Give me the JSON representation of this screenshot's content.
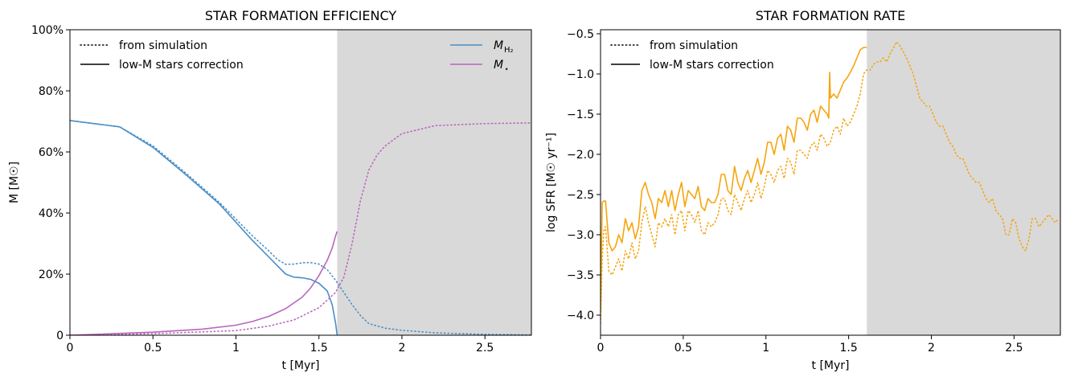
{
  "chart_data": [
    {
      "type": "line",
      "title": "STAR FORMATION EFFICIENCY",
      "xlabel": "t  [Myr]",
      "ylabel": "M  [M☉]",
      "xlim": [
        0,
        2.78
      ],
      "ylim": [
        0,
        100
      ],
      "xticks": [
        "0",
        "0.5",
        "1",
        "1.5",
        "2",
        "2.5"
      ],
      "yticks": [
        "0",
        "20%",
        "40%",
        "60%",
        "80%",
        "100%"
      ],
      "shaded_from_x": 1.61,
      "legend_style": [
        {
          "label": "from simulation",
          "style": "dotted"
        },
        {
          "label": "low-M stars correction",
          "style": "solid"
        }
      ],
      "legend_species": [
        {
          "label": "M",
          "sub": "H₂",
          "color": "#4a8fc6"
        },
        {
          "label": "M",
          "sub": "⋆",
          "color": "#b966bd"
        }
      ],
      "series": [
        {
          "name": "M H2",
          "style": "dotted",
          "color": "#4a8fc6",
          "x": [
            0,
            0.3,
            0.5,
            0.7,
            0.9,
            1.0,
            1.1,
            1.2,
            1.25,
            1.3,
            1.35,
            1.4,
            1.45,
            1.5,
            1.55,
            1.6,
            1.65,
            1.7,
            1.75,
            1.8,
            1.9,
            2.0,
            2.2,
            2.5,
            2.78
          ],
          "y": [
            70.3,
            68.2,
            62,
            53,
            43.5,
            38,
            32.5,
            27.5,
            24.8,
            23.2,
            23.3,
            23.7,
            23.8,
            23.3,
            21.5,
            18,
            14,
            10,
            6.5,
            3.8,
            2.3,
            1.6,
            0.8,
            0.3,
            0.1
          ]
        },
        {
          "name": "M H2 corrected",
          "style": "solid",
          "color": "#4a8fc6",
          "x": [
            0,
            0.3,
            0.5,
            0.7,
            0.9,
            1.0,
            1.1,
            1.2,
            1.25,
            1.3,
            1.35,
            1.4,
            1.45,
            1.5,
            1.55,
            1.58,
            1.6,
            1.61
          ],
          "y": [
            70.3,
            68.2,
            61.5,
            52.5,
            43,
            37,
            31,
            25.5,
            22.7,
            20,
            19,
            18.8,
            18.3,
            17,
            14.5,
            10,
            4,
            0
          ]
        },
        {
          "name": "M star",
          "style": "dotted",
          "color": "#b966bd",
          "x": [
            0,
            0.5,
            1.0,
            1.2,
            1.35,
            1.5,
            1.6,
            1.65,
            1.7,
            1.75,
            1.8,
            1.85,
            1.9,
            2.0,
            2.2,
            2.5,
            2.78
          ],
          "y": [
            0,
            0.5,
            1.5,
            3.0,
            5.0,
            9.0,
            14,
            19,
            30,
            44,
            54,
            59,
            62,
            66,
            68.6,
            69.3,
            69.5
          ]
        },
        {
          "name": "M star corrected",
          "style": "solid",
          "color": "#b966bd",
          "x": [
            0,
            0.5,
            0.8,
            1.0,
            1.1,
            1.2,
            1.3,
            1.4,
            1.45,
            1.5,
            1.55,
            1.58,
            1.6,
            1.61
          ],
          "y": [
            0,
            1.0,
            2.0,
            3.3,
            4.5,
            6.2,
            8.7,
            12.5,
            15.5,
            19.5,
            24.5,
            28.5,
            32.5,
            34
          ]
        }
      ]
    },
    {
      "type": "line",
      "title": "STAR FORMATION RATE",
      "xlabel": "t  [Myr]",
      "ylabel": "log SFR  [M☉ yr⁻¹]",
      "xlim": [
        0,
        2.78
      ],
      "ylim": [
        -4.25,
        -0.45
      ],
      "xticks": [
        "0",
        "0.5",
        "1",
        "1.5",
        "2",
        "2.5"
      ],
      "yticks": [
        "−4.0",
        "−3.5",
        "−3.0",
        "−2.5",
        "−2.0",
        "−1.5",
        "−1.0",
        "−0.5"
      ],
      "shaded_from_x": 1.61,
      "legend_style": [
        {
          "label": "from simulation",
          "style": "dotted"
        },
        {
          "label": "low-M stars correction",
          "style": "solid"
        }
      ],
      "series": [
        {
          "name": "SFR",
          "style": "dotted",
          "color": "#f5a50e",
          "x": [
            0,
            0.01,
            0.02,
            0.03,
            0.05,
            0.07,
            0.09,
            0.11,
            0.13,
            0.15,
            0.17,
            0.19,
            0.21,
            0.23,
            0.25,
            0.27,
            0.29,
            0.31,
            0.33,
            0.35,
            0.37,
            0.39,
            0.41,
            0.43,
            0.45,
            0.47,
            0.49,
            0.51,
            0.53,
            0.55,
            0.57,
            0.59,
            0.61,
            0.63,
            0.65,
            0.67,
            0.69,
            0.71,
            0.73,
            0.75,
            0.77,
            0.79,
            0.81,
            0.83,
            0.85,
            0.87,
            0.89,
            0.91,
            0.93,
            0.95,
            0.97,
            0.99,
            1.01,
            1.03,
            1.05,
            1.07,
            1.09,
            1.11,
            1.13,
            1.15,
            1.17,
            1.19,
            1.21,
            1.23,
            1.25,
            1.27,
            1.29,
            1.31,
            1.33,
            1.35,
            1.37,
            1.39,
            1.41,
            1.43,
            1.45,
            1.47,
            1.49,
            1.51,
            1.53,
            1.55,
            1.57,
            1.59,
            1.61,
            1.63,
            1.65,
            1.67,
            1.69,
            1.71,
            1.73,
            1.75,
            1.77,
            1.79,
            1.81,
            1.83,
            1.85,
            1.87,
            1.89,
            1.91,
            1.93,
            1.95,
            1.97,
            1.99,
            2.01,
            2.03,
            2.05,
            2.07,
            2.09,
            2.11,
            2.13,
            2.15,
            2.17,
            2.19,
            2.21,
            2.23,
            2.25,
            2.27,
            2.29,
            2.31,
            2.33,
            2.35,
            2.37,
            2.39,
            2.41,
            2.43,
            2.45,
            2.47,
            2.49,
            2.51,
            2.53,
            2.55,
            2.57,
            2.59,
            2.61,
            2.63,
            2.65,
            2.67,
            2.69,
            2.71,
            2.73,
            2.75,
            2.77
          ],
          "y": [
            -4.1,
            -3.3,
            -2.95,
            -2.9,
            -3.45,
            -3.5,
            -3.4,
            -3.3,
            -3.45,
            -3.2,
            -3.3,
            -3.1,
            -3.3,
            -3.2,
            -2.85,
            -2.65,
            -2.85,
            -3.0,
            -3.15,
            -2.85,
            -2.9,
            -2.8,
            -2.9,
            -2.75,
            -3.0,
            -2.75,
            -2.7,
            -2.95,
            -2.7,
            -2.75,
            -2.85,
            -2.7,
            -2.95,
            -3.0,
            -2.85,
            -2.9,
            -2.85,
            -2.75,
            -2.55,
            -2.55,
            -2.7,
            -2.75,
            -2.5,
            -2.6,
            -2.7,
            -2.55,
            -2.45,
            -2.6,
            -2.5,
            -2.35,
            -2.55,
            -2.4,
            -2.2,
            -2.25,
            -2.35,
            -2.2,
            -2.15,
            -2.3,
            -2.05,
            -2.1,
            -2.25,
            -1.95,
            -1.95,
            -2.0,
            -2.05,
            -1.9,
            -1.85,
            -1.95,
            -1.75,
            -1.8,
            -1.9,
            -1.85,
            -1.7,
            -1.65,
            -1.75,
            -1.55,
            -1.65,
            -1.6,
            -1.5,
            -1.4,
            -1.25,
            -1.0,
            -0.95,
            -0.95,
            -0.88,
            -0.85,
            -0.85,
            -0.8,
            -0.85,
            -0.75,
            -0.68,
            -0.6,
            -0.65,
            -0.72,
            -0.8,
            -0.9,
            -1.0,
            -1.15,
            -1.3,
            -1.35,
            -1.4,
            -1.4,
            -1.5,
            -1.6,
            -1.65,
            -1.65,
            -1.75,
            -1.85,
            -1.9,
            -2.0,
            -2.05,
            -2.05,
            -2.15,
            -2.25,
            -2.3,
            -2.35,
            -2.35,
            -2.45,
            -2.55,
            -2.6,
            -2.55,
            -2.7,
            -2.75,
            -2.8,
            -3.0,
            -3.0,
            -2.8,
            -2.85,
            -3.05,
            -3.15,
            -3.2,
            -3.05,
            -2.8,
            -2.8,
            -2.9,
            -2.85,
            -2.8,
            -2.75,
            -2.8,
            -2.85,
            -2.8
          ]
        },
        {
          "name": "SFR corrected",
          "style": "solid",
          "color": "#f5a50e",
          "x": [
            0,
            0.01,
            0.02,
            0.03,
            0.05,
            0.07,
            0.09,
            0.11,
            0.13,
            0.15,
            0.17,
            0.19,
            0.21,
            0.23,
            0.25,
            0.27,
            0.29,
            0.31,
            0.33,
            0.35,
            0.37,
            0.39,
            0.41,
            0.43,
            0.45,
            0.47,
            0.49,
            0.51,
            0.53,
            0.55,
            0.57,
            0.59,
            0.61,
            0.63,
            0.65,
            0.67,
            0.69,
            0.71,
            0.73,
            0.75,
            0.77,
            0.79,
            0.81,
            0.83,
            0.85,
            0.87,
            0.89,
            0.91,
            0.93,
            0.95,
            0.97,
            0.99,
            1.01,
            1.03,
            1.05,
            1.07,
            1.09,
            1.11,
            1.13,
            1.15,
            1.17,
            1.19,
            1.21,
            1.23,
            1.25,
            1.27,
            1.29,
            1.31,
            1.33,
            1.35,
            1.37,
            1.38,
            1.385,
            1.39,
            1.41,
            1.43,
            1.45,
            1.47,
            1.49,
            1.51,
            1.53,
            1.55,
            1.57,
            1.59,
            1.61
          ],
          "y": [
            -3.95,
            -2.6,
            -2.58,
            -2.58,
            -3.1,
            -3.2,
            -3.15,
            -3.0,
            -3.1,
            -2.8,
            -2.95,
            -2.85,
            -3.05,
            -2.9,
            -2.45,
            -2.35,
            -2.5,
            -2.6,
            -2.8,
            -2.55,
            -2.6,
            -2.45,
            -2.65,
            -2.45,
            -2.7,
            -2.5,
            -2.35,
            -2.65,
            -2.45,
            -2.5,
            -2.55,
            -2.4,
            -2.65,
            -2.7,
            -2.55,
            -2.6,
            -2.6,
            -2.5,
            -2.25,
            -2.25,
            -2.45,
            -2.5,
            -2.15,
            -2.35,
            -2.45,
            -2.3,
            -2.2,
            -2.35,
            -2.2,
            -2.05,
            -2.25,
            -2.1,
            -1.85,
            -1.85,
            -2.0,
            -1.8,
            -1.75,
            -1.95,
            -1.65,
            -1.7,
            -1.85,
            -1.55,
            -1.55,
            -1.6,
            -1.7,
            -1.5,
            -1.45,
            -1.6,
            -1.4,
            -1.45,
            -1.5,
            -1.55,
            -0.98,
            -1.3,
            -1.25,
            -1.3,
            -1.2,
            -1.1,
            -1.05,
            -0.98,
            -0.9,
            -0.8,
            -0.7,
            -0.67,
            -0.67
          ]
        }
      ]
    }
  ]
}
